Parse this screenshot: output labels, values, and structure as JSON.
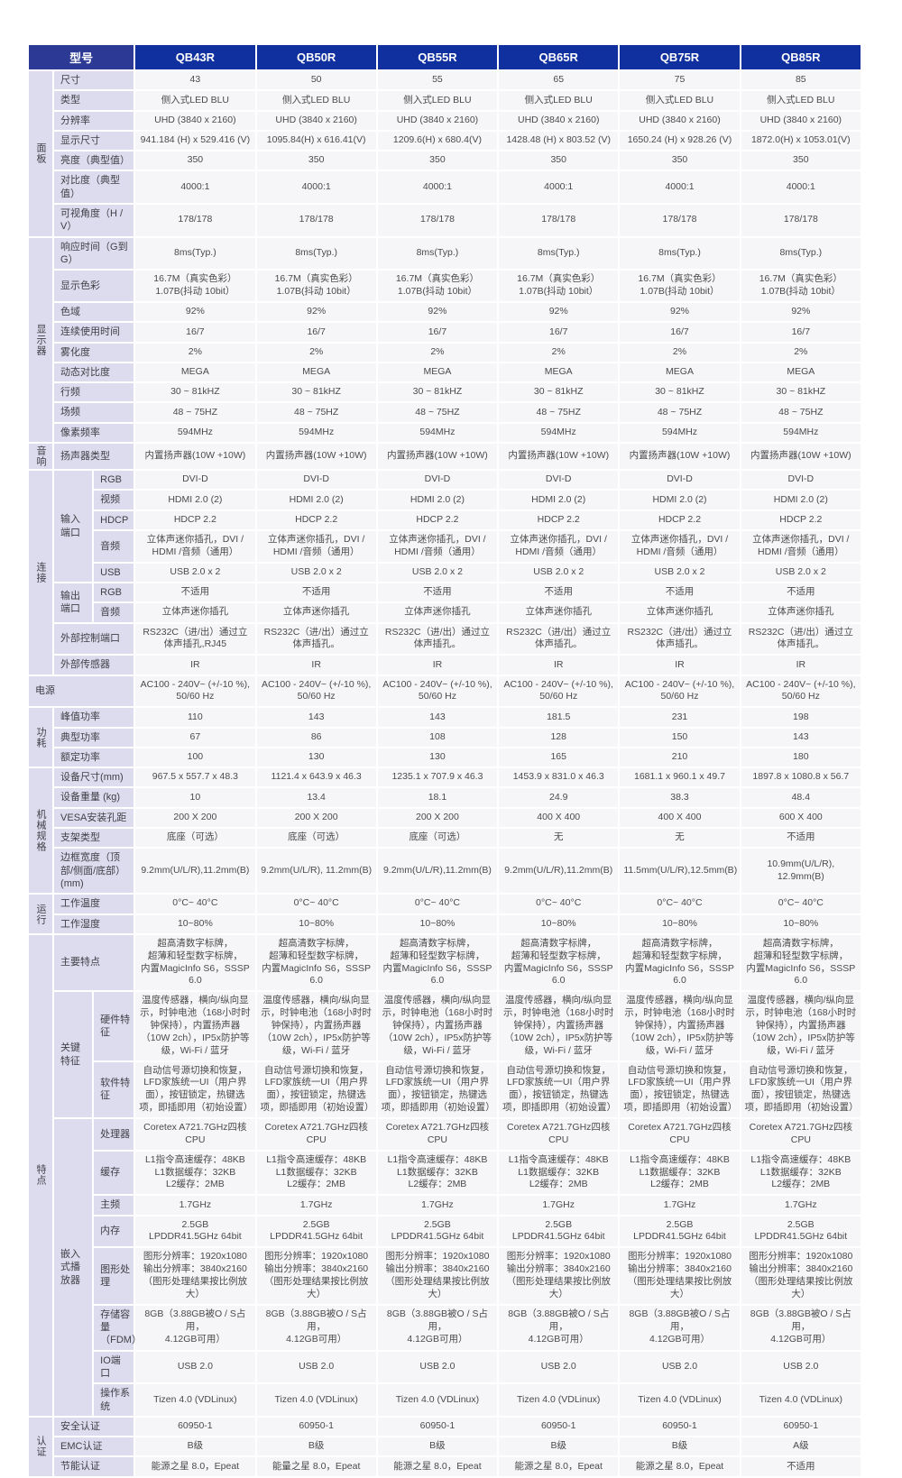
{
  "colors": {
    "corner_header_bg": "#2c3a96",
    "model_header_bg": "#1130a0",
    "label_bg": "#dcdcee",
    "cell_bg": "#f6f6f8",
    "header_text": "#ffffff",
    "body_text": "#4a4a4a"
  },
  "table": {
    "corner_label": "型号",
    "models": [
      "QB43R",
      "QB50R",
      "QB55R",
      "QB65R",
      "QB75R",
      "QB85R"
    ],
    "groups": [
      {
        "name": "面板",
        "rows": [
          {
            "label": "尺寸",
            "values": [
              "43",
              "50",
              "55",
              "65",
              "75",
              "85"
            ]
          },
          {
            "label": "类型",
            "value": "侧入式LED BLU"
          },
          {
            "label": "分辨率",
            "value": "UHD (3840 x 2160)"
          },
          {
            "label": "显示尺寸",
            "values": [
              "941.184 (H) x 529.416 (V)",
              "1095.84(H) x 616.41(V)",
              "1209.6(H) x 680.4(V)",
              "1428.48 (H) x 803.52 (V)",
              "1650.24 (H) x 928.26 (V)",
              "1872.0(H) x 1053.01(V)"
            ]
          },
          {
            "label": "亮度（典型值）",
            "value": "350"
          },
          {
            "label": "对比度（典型值）",
            "value": "4000:1"
          },
          {
            "label": "可视角度（H / V）",
            "value": "178/178"
          }
        ]
      },
      {
        "name": "显示器",
        "rows": [
          {
            "label": "响应时间（G到G）",
            "value": "8ms(Typ.)"
          },
          {
            "label": "显示色彩",
            "value": "16.7M（真实色彩）1.07B(抖动 10bit）"
          },
          {
            "label": "色域",
            "value": "92%"
          },
          {
            "label": "连续使用时间",
            "value": "16/7"
          },
          {
            "label": "雾化度",
            "value": "2%"
          },
          {
            "label": "动态对比度",
            "value": "MEGA"
          },
          {
            "label": "行频",
            "value": "30 ~ 81kHZ"
          },
          {
            "label": "场频",
            "value": "48 ~ 75HZ"
          },
          {
            "label": "像素频率",
            "value": "594MHz"
          }
        ]
      },
      {
        "name": "音响",
        "rows": [
          {
            "label": "扬声器类型",
            "value": "内置扬声器(10W +10W)"
          }
        ]
      },
      {
        "name": "连接",
        "rows": [
          {
            "label": "输入端口",
            "subrows": [
              {
                "label": "RGB",
                "value": "DVI-D"
              },
              {
                "label": "视频",
                "value": "HDMI 2.0 (2)"
              },
              {
                "label": "HDCP",
                "value": "HDCP 2.2"
              },
              {
                "label": "音频",
                "value": "立体声迷你插孔，DVI / HDMI /音频（通用）"
              },
              {
                "label": "USB",
                "value": "USB 2.0 x 2"
              }
            ]
          },
          {
            "label": "输出端口",
            "subrows": [
              {
                "label": "RGB",
                "value": "不适用"
              },
              {
                "label": "音频",
                "value": "立体声迷你插孔"
              }
            ]
          },
          {
            "label": "外部控制端口",
            "values": [
              "RS232C（进/出）通过立体声插孔,RJ45",
              "RS232C（进/出）通过立体声插孔。",
              "RS232C（进/出）通过立体声插孔。",
              "RS232C（进/出）通过立体声插孔。",
              "RS232C（进/出）通过立体声插孔。",
              "RS232C（进/出）通过立体声插孔。"
            ]
          },
          {
            "label": "外部传感器",
            "value": "IR"
          }
        ]
      },
      {
        "name": "电源",
        "label_spans_all": true,
        "rows": [
          {
            "label": "电源",
            "value": "AC100 - 240V~ (+/-10 %),\n50/60 Hz"
          }
        ]
      },
      {
        "name": "功耗",
        "rows": [
          {
            "label": "峰值功率",
            "values": [
              "110",
              "143",
              "143",
              "181.5",
              "231",
              "198"
            ]
          },
          {
            "label": "典型功率",
            "values": [
              "67",
              "86",
              "108",
              "128",
              "150",
              "143"
            ]
          },
          {
            "label": "额定功率",
            "values": [
              "100",
              "130",
              "130",
              "165",
              "210",
              "180"
            ]
          }
        ]
      },
      {
        "name": "机械规格",
        "rows": [
          {
            "label": "设备尺寸(mm)",
            "values": [
              "967.5 x 557.7 x 48.3",
              "1121.4 x 643.9 x 46.3",
              "1235.1 x 707.9 x 46.3",
              "1453.9 x 831.0 x 46.3",
              "1681.1 x 960.1 x 49.7",
              "1897.8 x 1080.8 x 56.7"
            ]
          },
          {
            "label": "设备重量 (kg)",
            "values": [
              "10",
              "13.4",
              "18.1",
              "24.9",
              "38.3",
              "48.4"
            ]
          },
          {
            "label": "VESA安装孔距",
            "values": [
              "200 X 200",
              "200 X 200",
              "200 X 200",
              "400 X 400",
              "400 X 400",
              "600 X 400"
            ]
          },
          {
            "label": "支架类型",
            "values": [
              "底座（可选）",
              "底座（可选）",
              "底座（可选）",
              "无",
              "无",
              "不适用"
            ]
          },
          {
            "label": "边框宽度（顶部/侧面/底部）(mm)",
            "values": [
              "9.2mm(U/L/R),11.2mm(B)",
              "9.2mm(U/L/R), 11.2mm(B)",
              "9.2mm(U/L/R),11.2mm(B)",
              "9.2mm(U/L/R),11.2mm(B)",
              "11.5mm(U/L/R),12.5mm(B)",
              "10.9mm(U/L/R), 12.9mm(B)"
            ]
          }
        ]
      },
      {
        "name": "运行",
        "rows": [
          {
            "label": "工作温度",
            "value": "0°C~ 40°C"
          },
          {
            "label": "工作湿度",
            "value": "10~80%"
          }
        ]
      },
      {
        "name": "特点",
        "rows": [
          {
            "label": "主要特点",
            "value": "超高清数字标牌，\n超薄和轻型数字标牌，\n内置MagicInfo S6，SSSP 6.0"
          },
          {
            "label": "关键特征",
            "subrows": [
              {
                "label": "硬件特征",
                "value": "温度传感器，横向/纵向显示，时钟电池（168小时时钟保持），内置扬声器（10W 2ch），IP5x防护等级，Wi-Fi / 蓝牙"
              },
              {
                "label": "软件特征",
                "value": "自动信号源切换和恢复，LFD家族统一UI（用户界面），按钮锁定，热键选项，即插即用（初始设置）"
              }
            ]
          },
          {
            "label": "嵌入式播放器",
            "subrows": [
              {
                "label": "处理器",
                "value": "Coretex A721.7GHz四核CPU"
              },
              {
                "label": "缓存",
                "value": "L1指令高速缓存：48KB\nL1数据缓存：32KB\nL2缓存：2MB"
              },
              {
                "label": "主频",
                "value": "1.7GHz"
              },
              {
                "label": "内存",
                "value": "2.5GB\nLPDDR41.5GHz 64bit"
              },
              {
                "label": "图形处理",
                "value": "图形分辨率：1920x1080\n输出分辨率：3840x2160\n（图形处理结果按比例放大）"
              },
              {
                "label": "存储容量（FDM）",
                "value": "8GB（3.88GB被O / S占用，\n4.12GB可用）"
              },
              {
                "label": "IO端口",
                "value": "USB 2.0"
              },
              {
                "label": "操作系统",
                "value": "Tizen 4.0 (VDLinux)"
              }
            ]
          }
        ]
      },
      {
        "name": "认证",
        "rows": [
          {
            "label": "安全认证",
            "value": "60950-1"
          },
          {
            "label": "EMC认证",
            "values": [
              "B级",
              "B级",
              "B级",
              "B级",
              "B级",
              "A级"
            ]
          },
          {
            "label": "节能认证",
            "values": [
              "能源之星 8.0，Epeat",
              "能量之星 8.0，Epeat",
              "能源之星 8.0，Epeat",
              "能源之星 8.0，Epeat",
              "能源之星 8.0，Epeat",
              "不适用"
            ]
          }
        ]
      }
    ]
  }
}
